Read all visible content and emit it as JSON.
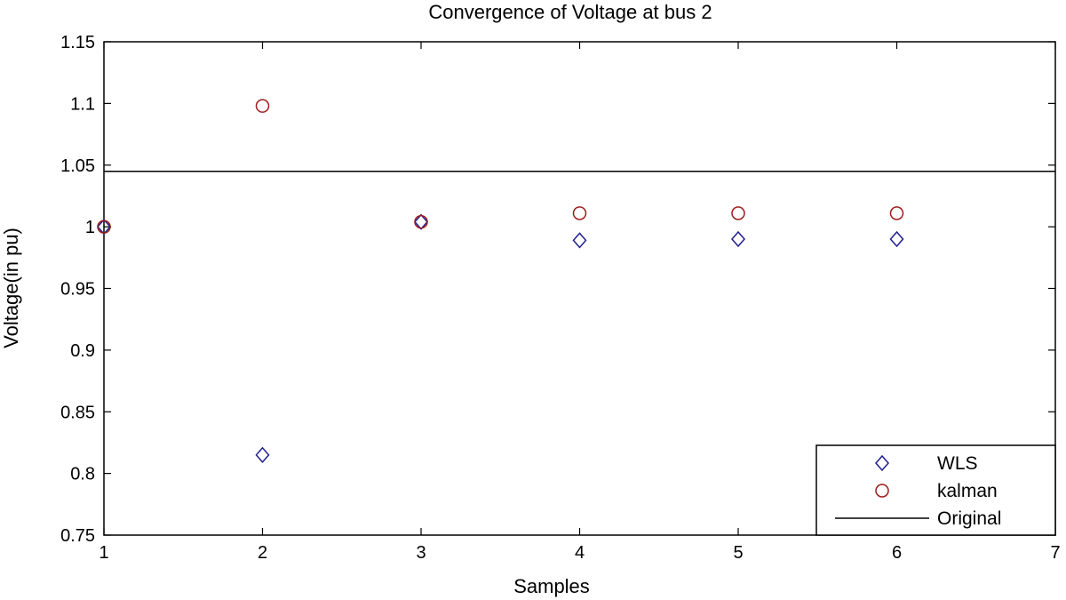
{
  "chart_data": {
    "type": "scatter",
    "title": "Convergence of Voltage at bus 2",
    "xlabel": "Samples",
    "ylabel": "Voltage(in pu)",
    "xlim": [
      1,
      7
    ],
    "ylim": [
      0.75,
      1.15
    ],
    "x_ticks": [
      1,
      2,
      3,
      4,
      5,
      6,
      7
    ],
    "y_ticks": [
      0.75,
      0.8,
      0.85,
      0.9,
      0.95,
      1,
      1.05,
      1.1,
      1.15
    ],
    "x_tick_labels": [
      "1",
      "2",
      "3",
      "4",
      "5",
      "6",
      "7"
    ],
    "y_tick_labels": [
      "0.75",
      "0.8",
      "0.85",
      "0.9",
      "0.95",
      "1",
      "1.05",
      "1.1",
      "1.15"
    ],
    "grid": false,
    "legend_position": "bottom-right",
    "series": [
      {
        "name": "WLS",
        "marker": "diamond",
        "color": "#1f1f8f",
        "x": [
          1,
          2,
          3,
          4,
          5,
          6
        ],
        "y": [
          1.0,
          0.815,
          1.004,
          0.989,
          0.99,
          0.99
        ]
      },
      {
        "name": "kalman",
        "marker": "circle",
        "color": "#9e1c1c",
        "x": [
          1,
          2,
          3,
          4,
          5,
          6
        ],
        "y": [
          1.0,
          1.098,
          1.004,
          1.011,
          1.011,
          1.011
        ]
      },
      {
        "name": "Original",
        "marker": "line",
        "color": "#000000",
        "y": 1.045
      }
    ]
  }
}
